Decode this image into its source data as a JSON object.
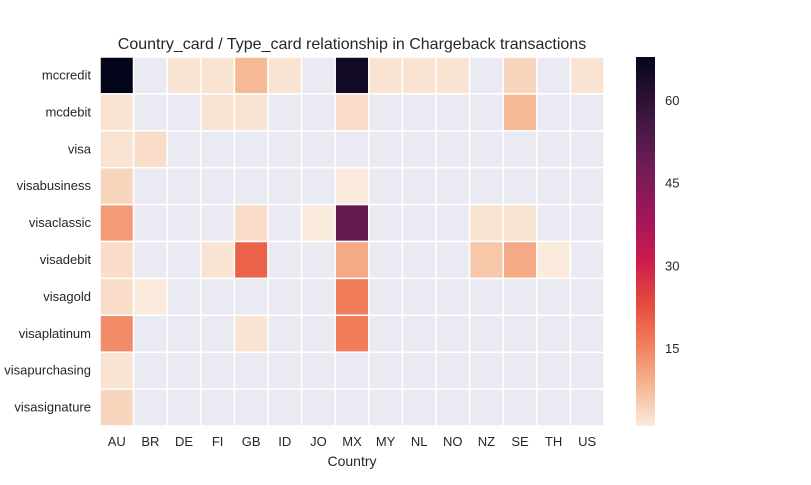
{
  "chart_data": {
    "type": "heatmap",
    "title": "Country_card / Type_card relationship in Chargeback transactions",
    "xlabel": "Country",
    "ylabel": "",
    "x_categories": [
      "AU",
      "BR",
      "DE",
      "FI",
      "GB",
      "ID",
      "JO",
      "MX",
      "MY",
      "NL",
      "NO",
      "NZ",
      "SE",
      "TH",
      "US"
    ],
    "y_categories": [
      "mccredit",
      "mcdebit",
      "visa",
      "visabusiness",
      "visaclassic",
      "visadebit",
      "visagold",
      "visaplatinum",
      "visapurchasing",
      "visasignature"
    ],
    "values": [
      [
        68,
        null,
        2,
        2,
        8,
        2,
        null,
        65,
        2,
        2,
        2,
        null,
        4,
        null,
        2
      ],
      [
        2,
        null,
        null,
        2,
        2,
        null,
        null,
        3,
        null,
        null,
        null,
        null,
        8,
        null,
        null
      ],
      [
        2,
        3,
        null,
        null,
        null,
        null,
        null,
        null,
        null,
        null,
        null,
        null,
        null,
        null,
        null
      ],
      [
        4,
        null,
        null,
        null,
        null,
        null,
        null,
        1,
        null,
        null,
        null,
        null,
        null,
        null,
        null
      ],
      [
        12,
        null,
        null,
        null,
        3,
        null,
        1,
        50,
        null,
        null,
        null,
        2,
        2,
        null,
        null
      ],
      [
        3,
        null,
        null,
        2,
        20,
        null,
        null,
        10,
        null,
        null,
        null,
        6,
        10,
        1,
        null
      ],
      [
        3,
        1,
        null,
        null,
        null,
        null,
        null,
        16,
        null,
        null,
        null,
        null,
        null,
        null,
        null
      ],
      [
        14,
        null,
        null,
        null,
        2,
        null,
        null,
        16,
        null,
        null,
        null,
        null,
        null,
        null,
        null
      ],
      [
        2,
        null,
        null,
        null,
        null,
        null,
        null,
        null,
        null,
        null,
        null,
        null,
        null,
        null,
        null
      ],
      [
        4,
        null,
        null,
        null,
        null,
        null,
        null,
        null,
        null,
        null,
        null,
        null,
        null,
        null,
        null
      ]
    ],
    "colorbar": {
      "min": 1,
      "max": 68,
      "ticks": [
        15,
        30,
        45,
        60
      ]
    },
    "missing_color": "#eaeaf2",
    "grid": true,
    "legend": "colorbar-right"
  }
}
